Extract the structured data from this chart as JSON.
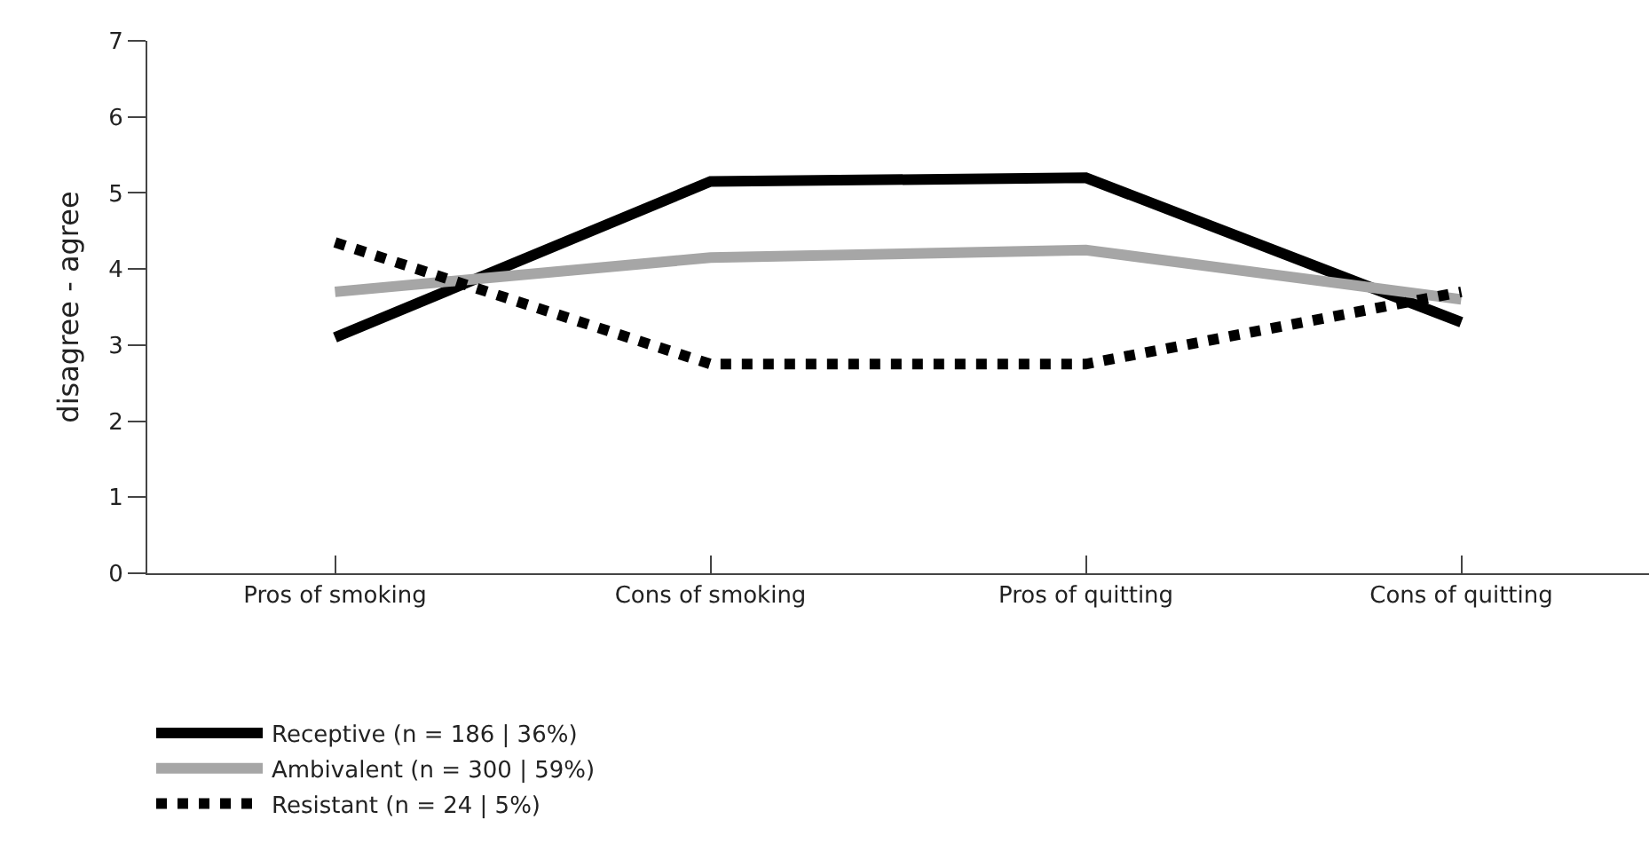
{
  "chart_data": {
    "type": "line",
    "ylabel": "disagree - agree",
    "categories": [
      "Pros of smoking",
      "Cons of smoking",
      "Pros of quitting",
      "Cons of quitting"
    ],
    "series": [
      {
        "name": "Receptive (n = 186 | 36%)",
        "color": "#000000",
        "line_style": "solid",
        "values": [
          3.1,
          5.15,
          5.2,
          3.3
        ]
      },
      {
        "name": "Ambivalent (n = 300 | 59%)",
        "color": "#a6a6a6",
        "line_style": "solid",
        "values": [
          3.7,
          4.15,
          4.25,
          3.6
        ]
      },
      {
        "name": "Resistant (n = 24 | 5%)",
        "color": "#000000",
        "line_style": "dotted",
        "values": [
          4.35,
          2.75,
          2.75,
          3.7
        ]
      }
    ],
    "ylim": [
      0,
      7
    ],
    "yticks": [
      0,
      1,
      2,
      3,
      4,
      5,
      6,
      7
    ],
    "grid": false,
    "legend": "bottom",
    "marker": "none"
  }
}
